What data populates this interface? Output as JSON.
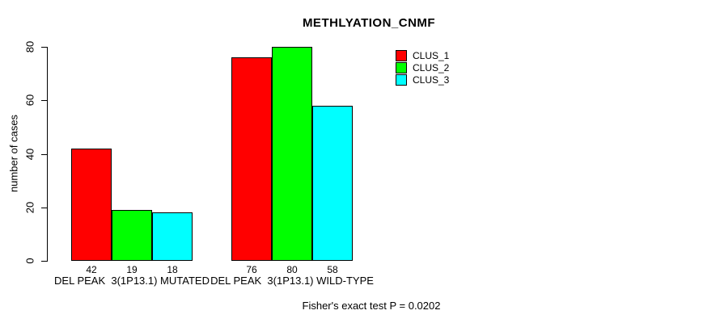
{
  "chart_data": {
    "type": "bar",
    "title": "METHLYATION_CNMF",
    "ylabel": "number of cases",
    "xlabel": "",
    "ylim": [
      0,
      80
    ],
    "yticks": [
      0,
      20,
      40,
      60,
      80
    ],
    "grid": false,
    "legend_position": "top-right",
    "bar_value_labels": true,
    "categories": [
      "DEL PEAK  3(1P13.1) MUTATED",
      "DEL PEAK  3(1P13.1) WILD-TYPE"
    ],
    "series": [
      {
        "name": "CLUS_1",
        "color": "#ff0000",
        "values": [
          42,
          76
        ]
      },
      {
        "name": "CLUS_2",
        "color": "#00ff00",
        "values": [
          19,
          80
        ]
      },
      {
        "name": "CLUS_3",
        "color": "#00ffff",
        "values": [
          18,
          58
        ]
      }
    ],
    "annotation": "Fisher's exact test P = 0.0202"
  },
  "colors": {
    "background": "#ffffff",
    "axis": "#000000",
    "text": "#000000"
  }
}
